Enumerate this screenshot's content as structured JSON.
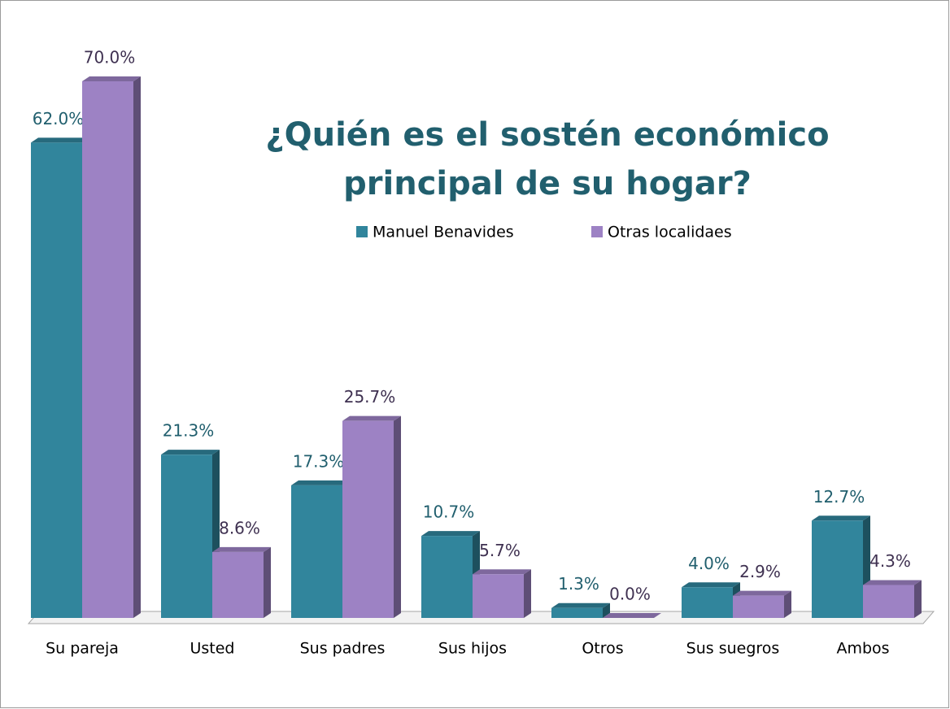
{
  "chart_data": {
    "type": "bar",
    "title": [
      "¿Quién es el sostén económico",
      "principal de su hogar?"
    ],
    "categories": [
      "Su pareja",
      "Usted",
      "Sus padres",
      "Sus hijos",
      "Otros",
      "Sus suegros",
      "Ambos"
    ],
    "series": [
      {
        "name": "Manuel Benavides",
        "color": "#31859c",
        "values": [
          62.0,
          21.3,
          17.3,
          10.7,
          1.3,
          4.0,
          12.7
        ],
        "value_labels": [
          "62.0%",
          "21.3%",
          "17.3%",
          "10.7%",
          "1.3%",
          "4.0%",
          "12.7%"
        ]
      },
      {
        "name": "Otras localidaes",
        "color": "#9d82c4",
        "values": [
          70.0,
          8.6,
          25.7,
          5.7,
          0.0,
          2.9,
          4.3
        ],
        "value_labels": [
          "70.0%",
          "8.6%",
          "25.7%",
          "5.7%",
          "0.0%",
          "2.9%",
          "4.3%"
        ]
      }
    ],
    "ylim": [
      0,
      70
    ]
  }
}
